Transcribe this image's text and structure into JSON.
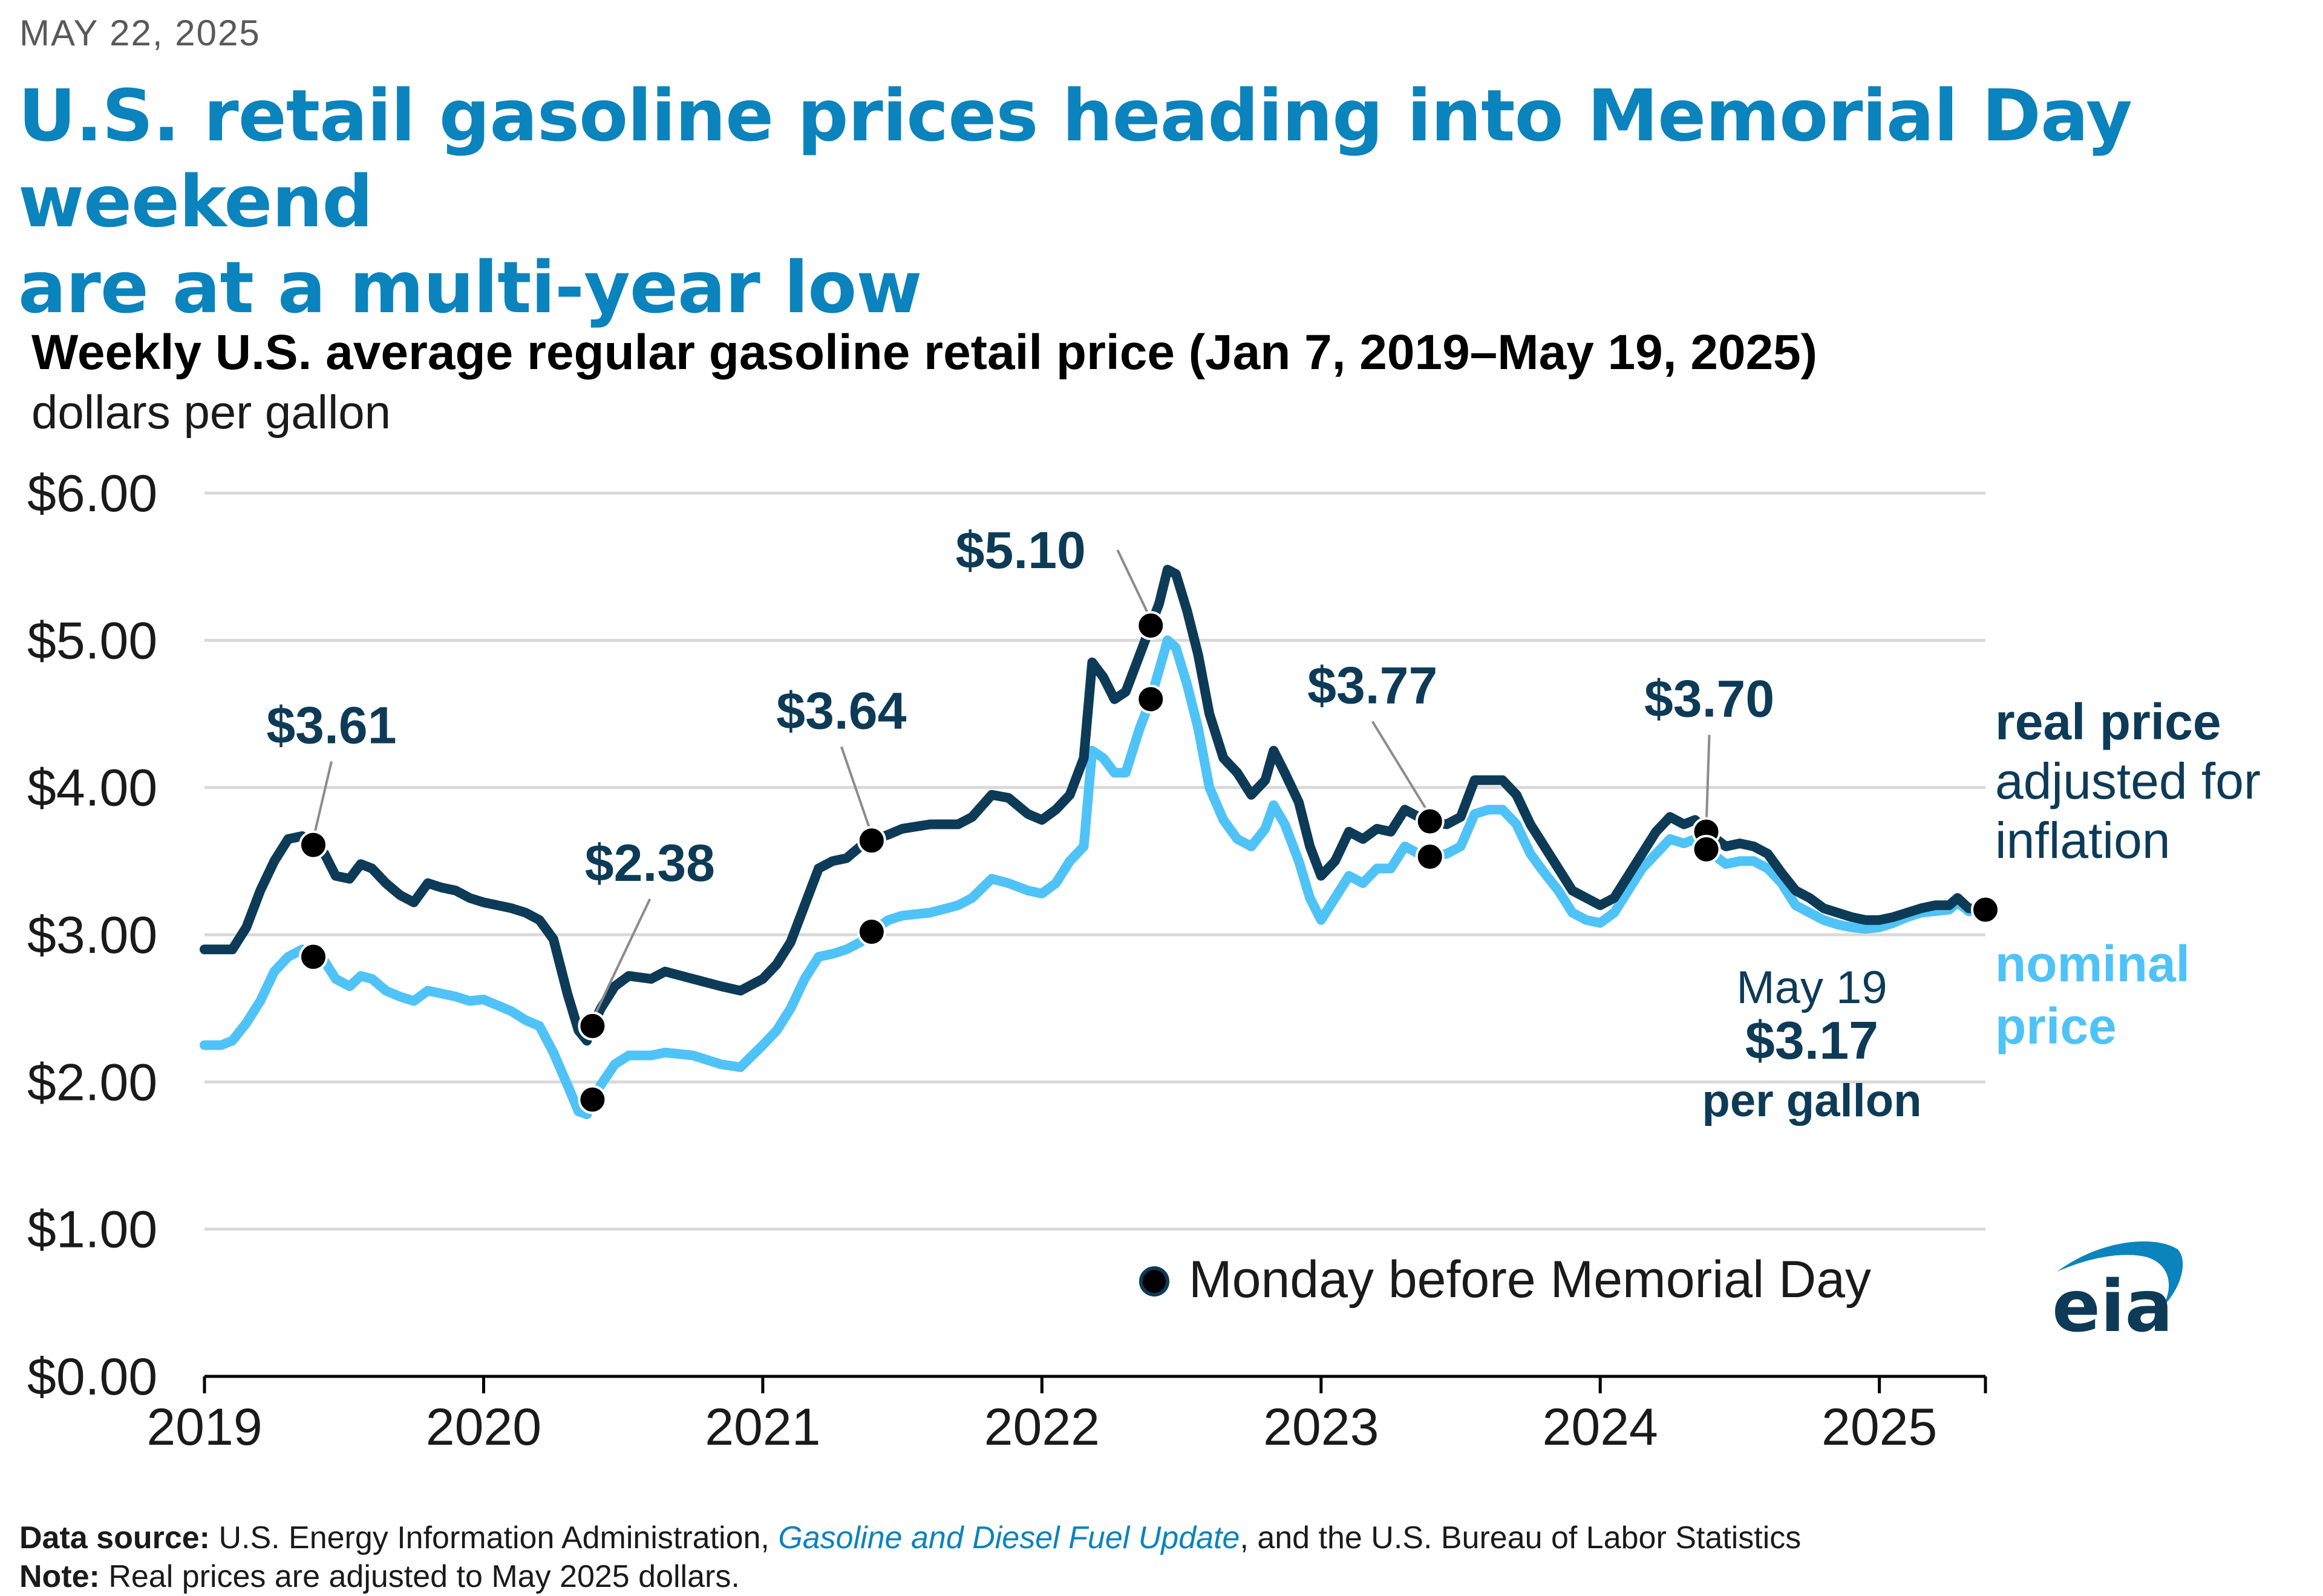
{
  "date": "MAY 22, 2025",
  "headline": {
    "line1": "U.S. retail gasoline prices heading into Memorial Day weekend",
    "line2": "are at a multi-year low"
  },
  "footer": {
    "source_label": "Data source:",
    "source_text1": " U.S. Energy Information Administration, ",
    "source_link": "Gasoline and Diesel Fuel Update",
    "source_text2": ", and the U.S. Bureau of Labor Statistics",
    "note_label": "Note:",
    "note_text": " Real prices are adjusted to May 2025 dollars."
  },
  "logo": {
    "text": "eia"
  },
  "colors": {
    "real": "#0d3b57",
    "nominal": "#4fc3f7",
    "marker": "#000000",
    "grid": "#d9d9d9",
    "accent": "#0b83bd"
  },
  "chart_data": {
    "type": "line",
    "title": "Weekly U.S. average regular gasoline retail price (Jan 7, 2019–May 19, 2025)",
    "ylabel": "dollars per gallon",
    "ylim": [
      0,
      6
    ],
    "xlim": [
      2019.0,
      2025.38
    ],
    "y_ticks": [
      0,
      1,
      2,
      3,
      4,
      5,
      6
    ],
    "y_tick_labels": [
      "$0.00",
      "$1.00",
      "$2.00",
      "$3.00",
      "$4.00",
      "$5.00",
      "$6.00"
    ],
    "x_ticks": [
      2019,
      2020,
      2021,
      2022,
      2023,
      2024,
      2025
    ],
    "x_tick_labels": [
      "2019",
      "2020",
      "2021",
      "2022",
      "2023",
      "2024",
      "2025"
    ],
    "grid": true,
    "series": [
      {
        "name": "real price",
        "label_bold": "real price",
        "label_rest": [
          "adjusted for",
          "inflation"
        ],
        "color": "#0d3b57",
        "points": [
          [
            2019.0,
            2.9
          ],
          [
            2019.06,
            2.9
          ],
          [
            2019.1,
            2.9
          ],
          [
            2019.15,
            3.05
          ],
          [
            2019.2,
            3.3
          ],
          [
            2019.25,
            3.5
          ],
          [
            2019.3,
            3.65
          ],
          [
            2019.35,
            3.67
          ],
          [
            2019.39,
            3.61
          ],
          [
            2019.43,
            3.55
          ],
          [
            2019.47,
            3.4
          ],
          [
            2019.52,
            3.38
          ],
          [
            2019.56,
            3.48
          ],
          [
            2019.6,
            3.45
          ],
          [
            2019.65,
            3.35
          ],
          [
            2019.7,
            3.27
          ],
          [
            2019.75,
            3.22
          ],
          [
            2019.8,
            3.35
          ],
          [
            2019.85,
            3.32
          ],
          [
            2019.9,
            3.3
          ],
          [
            2019.95,
            3.25
          ],
          [
            2020.0,
            3.22
          ],
          [
            2020.05,
            3.2
          ],
          [
            2020.1,
            3.18
          ],
          [
            2020.15,
            3.15
          ],
          [
            2020.2,
            3.1
          ],
          [
            2020.25,
            2.97
          ],
          [
            2020.3,
            2.6
          ],
          [
            2020.34,
            2.35
          ],
          [
            2020.37,
            2.28
          ],
          [
            2020.39,
            2.38
          ],
          [
            2020.42,
            2.5
          ],
          [
            2020.47,
            2.65
          ],
          [
            2020.52,
            2.72
          ],
          [
            2020.6,
            2.7
          ],
          [
            2020.65,
            2.75
          ],
          [
            2020.75,
            2.7
          ],
          [
            2020.85,
            2.65
          ],
          [
            2020.92,
            2.62
          ],
          [
            2021.0,
            2.7
          ],
          [
            2021.05,
            2.8
          ],
          [
            2021.1,
            2.95
          ],
          [
            2021.15,
            3.2
          ],
          [
            2021.2,
            3.45
          ],
          [
            2021.25,
            3.5
          ],
          [
            2021.3,
            3.52
          ],
          [
            2021.35,
            3.6
          ],
          [
            2021.39,
            3.64
          ],
          [
            2021.45,
            3.68
          ],
          [
            2021.5,
            3.72
          ],
          [
            2021.6,
            3.75
          ],
          [
            2021.7,
            3.75
          ],
          [
            2021.75,
            3.8
          ],
          [
            2021.82,
            3.95
          ],
          [
            2021.88,
            3.93
          ],
          [
            2021.95,
            3.82
          ],
          [
            2022.0,
            3.78
          ],
          [
            2022.05,
            3.85
          ],
          [
            2022.1,
            3.95
          ],
          [
            2022.15,
            4.2
          ],
          [
            2022.18,
            4.85
          ],
          [
            2022.22,
            4.75
          ],
          [
            2022.26,
            4.6
          ],
          [
            2022.3,
            4.65
          ],
          [
            2022.35,
            4.9
          ],
          [
            2022.39,
            5.1
          ],
          [
            2022.42,
            5.25
          ],
          [
            2022.45,
            5.48
          ],
          [
            2022.48,
            5.45
          ],
          [
            2022.52,
            5.2
          ],
          [
            2022.56,
            4.9
          ],
          [
            2022.6,
            4.5
          ],
          [
            2022.65,
            4.2
          ],
          [
            2022.7,
            4.1
          ],
          [
            2022.75,
            3.95
          ],
          [
            2022.8,
            4.05
          ],
          [
            2022.83,
            4.25
          ],
          [
            2022.87,
            4.1
          ],
          [
            2022.92,
            3.9
          ],
          [
            2022.96,
            3.6
          ],
          [
            2023.0,
            3.4
          ],
          [
            2023.05,
            3.5
          ],
          [
            2023.1,
            3.7
          ],
          [
            2023.15,
            3.65
          ],
          [
            2023.2,
            3.72
          ],
          [
            2023.25,
            3.7
          ],
          [
            2023.3,
            3.85
          ],
          [
            2023.35,
            3.8
          ],
          [
            2023.39,
            3.77
          ],
          [
            2023.45,
            3.75
          ],
          [
            2023.5,
            3.8
          ],
          [
            2023.55,
            4.05
          ],
          [
            2023.6,
            4.05
          ],
          [
            2023.65,
            4.05
          ],
          [
            2023.7,
            3.95
          ],
          [
            2023.75,
            3.75
          ],
          [
            2023.8,
            3.6
          ],
          [
            2023.85,
            3.45
          ],
          [
            2023.9,
            3.3
          ],
          [
            2023.95,
            3.25
          ],
          [
            2024.0,
            3.2
          ],
          [
            2024.05,
            3.25
          ],
          [
            2024.1,
            3.4
          ],
          [
            2024.15,
            3.55
          ],
          [
            2024.2,
            3.7
          ],
          [
            2024.25,
            3.8
          ],
          [
            2024.3,
            3.75
          ],
          [
            2024.34,
            3.78
          ],
          [
            2024.38,
            3.7
          ],
          [
            2024.45,
            3.6
          ],
          [
            2024.5,
            3.62
          ],
          [
            2024.55,
            3.6
          ],
          [
            2024.6,
            3.55
          ],
          [
            2024.65,
            3.42
          ],
          [
            2024.7,
            3.3
          ],
          [
            2024.75,
            3.25
          ],
          [
            2024.8,
            3.18
          ],
          [
            2024.85,
            3.15
          ],
          [
            2024.9,
            3.12
          ],
          [
            2024.95,
            3.1
          ],
          [
            2025.0,
            3.1
          ],
          [
            2025.05,
            3.12
          ],
          [
            2025.1,
            3.15
          ],
          [
            2025.15,
            3.18
          ],
          [
            2025.2,
            3.2
          ],
          [
            2025.25,
            3.2
          ],
          [
            2025.28,
            3.25
          ],
          [
            2025.32,
            3.18
          ],
          [
            2025.38,
            3.17
          ]
        ],
        "memorial_day": [
          [
            2019.39,
            3.61
          ],
          [
            2020.39,
            2.38
          ],
          [
            2021.39,
            3.64
          ],
          [
            2022.39,
            5.1
          ],
          [
            2023.39,
            3.77
          ],
          [
            2024.38,
            3.7
          ],
          [
            2025.38,
            3.17
          ]
        ]
      },
      {
        "name": "nominal price",
        "label_lines": [
          "nominal",
          "price"
        ],
        "color": "#4fc3f7",
        "points": [
          [
            2019.0,
            2.25
          ],
          [
            2019.06,
            2.25
          ],
          [
            2019.1,
            2.28
          ],
          [
            2019.15,
            2.4
          ],
          [
            2019.2,
            2.55
          ],
          [
            2019.25,
            2.75
          ],
          [
            2019.3,
            2.85
          ],
          [
            2019.35,
            2.9
          ],
          [
            2019.39,
            2.85
          ],
          [
            2019.43,
            2.82
          ],
          [
            2019.47,
            2.7
          ],
          [
            2019.52,
            2.65
          ],
          [
            2019.56,
            2.72
          ],
          [
            2019.6,
            2.7
          ],
          [
            2019.65,
            2.62
          ],
          [
            2019.7,
            2.58
          ],
          [
            2019.75,
            2.55
          ],
          [
            2019.8,
            2.62
          ],
          [
            2019.85,
            2.6
          ],
          [
            2019.9,
            2.58
          ],
          [
            2019.95,
            2.55
          ],
          [
            2020.0,
            2.56
          ],
          [
            2020.05,
            2.52
          ],
          [
            2020.1,
            2.48
          ],
          [
            2020.15,
            2.42
          ],
          [
            2020.2,
            2.38
          ],
          [
            2020.25,
            2.2
          ],
          [
            2020.3,
            1.98
          ],
          [
            2020.34,
            1.8
          ],
          [
            2020.37,
            1.78
          ],
          [
            2020.39,
            1.88
          ],
          [
            2020.42,
            1.98
          ],
          [
            2020.47,
            2.12
          ],
          [
            2020.52,
            2.18
          ],
          [
            2020.6,
            2.18
          ],
          [
            2020.65,
            2.2
          ],
          [
            2020.75,
            2.18
          ],
          [
            2020.85,
            2.12
          ],
          [
            2020.92,
            2.1
          ],
          [
            2021.0,
            2.25
          ],
          [
            2021.05,
            2.35
          ],
          [
            2021.1,
            2.5
          ],
          [
            2021.15,
            2.7
          ],
          [
            2021.2,
            2.85
          ],
          [
            2021.25,
            2.87
          ],
          [
            2021.3,
            2.9
          ],
          [
            2021.35,
            2.95
          ],
          [
            2021.39,
            3.02
          ],
          [
            2021.45,
            3.1
          ],
          [
            2021.5,
            3.13
          ],
          [
            2021.6,
            3.15
          ],
          [
            2021.7,
            3.2
          ],
          [
            2021.75,
            3.25
          ],
          [
            2021.82,
            3.38
          ],
          [
            2021.88,
            3.35
          ],
          [
            2021.95,
            3.3
          ],
          [
            2022.0,
            3.28
          ],
          [
            2022.05,
            3.35
          ],
          [
            2022.1,
            3.5
          ],
          [
            2022.15,
            3.6
          ],
          [
            2022.18,
            4.25
          ],
          [
            2022.22,
            4.2
          ],
          [
            2022.26,
            4.1
          ],
          [
            2022.3,
            4.1
          ],
          [
            2022.35,
            4.4
          ],
          [
            2022.39,
            4.6
          ],
          [
            2022.42,
            4.8
          ],
          [
            2022.45,
            5.0
          ],
          [
            2022.48,
            4.95
          ],
          [
            2022.52,
            4.7
          ],
          [
            2022.56,
            4.4
          ],
          [
            2022.6,
            4.0
          ],
          [
            2022.65,
            3.78
          ],
          [
            2022.7,
            3.65
          ],
          [
            2022.75,
            3.6
          ],
          [
            2022.8,
            3.72
          ],
          [
            2022.83,
            3.88
          ],
          [
            2022.87,
            3.75
          ],
          [
            2022.92,
            3.5
          ],
          [
            2022.96,
            3.25
          ],
          [
            2023.0,
            3.1
          ],
          [
            2023.05,
            3.25
          ],
          [
            2023.1,
            3.4
          ],
          [
            2023.15,
            3.35
          ],
          [
            2023.2,
            3.45
          ],
          [
            2023.25,
            3.45
          ],
          [
            2023.3,
            3.6
          ],
          [
            2023.35,
            3.55
          ],
          [
            2023.39,
            3.53
          ],
          [
            2023.45,
            3.55
          ],
          [
            2023.5,
            3.6
          ],
          [
            2023.55,
            3.82
          ],
          [
            2023.6,
            3.85
          ],
          [
            2023.65,
            3.85
          ],
          [
            2023.7,
            3.75
          ],
          [
            2023.75,
            3.55
          ],
          [
            2023.8,
            3.42
          ],
          [
            2023.85,
            3.3
          ],
          [
            2023.9,
            3.15
          ],
          [
            2023.95,
            3.1
          ],
          [
            2024.0,
            3.08
          ],
          [
            2024.05,
            3.15
          ],
          [
            2024.1,
            3.3
          ],
          [
            2024.15,
            3.45
          ],
          [
            2024.2,
            3.55
          ],
          [
            2024.25,
            3.65
          ],
          [
            2024.3,
            3.62
          ],
          [
            2024.34,
            3.65
          ],
          [
            2024.38,
            3.58
          ],
          [
            2024.45,
            3.48
          ],
          [
            2024.5,
            3.5
          ],
          [
            2024.55,
            3.5
          ],
          [
            2024.6,
            3.45
          ],
          [
            2024.65,
            3.35
          ],
          [
            2024.7,
            3.2
          ],
          [
            2024.75,
            3.15
          ],
          [
            2024.8,
            3.1
          ],
          [
            2024.85,
            3.07
          ],
          [
            2024.9,
            3.05
          ],
          [
            2024.95,
            3.04
          ],
          [
            2025.0,
            3.05
          ],
          [
            2025.05,
            3.08
          ],
          [
            2025.1,
            3.12
          ],
          [
            2025.15,
            3.15
          ],
          [
            2025.2,
            3.16
          ],
          [
            2025.25,
            3.17
          ],
          [
            2025.28,
            3.22
          ],
          [
            2025.32,
            3.16
          ],
          [
            2025.38,
            3.17
          ]
        ],
        "memorial_day": [
          [
            2019.39,
            2.85
          ],
          [
            2020.39,
            1.88
          ],
          [
            2021.39,
            3.02
          ],
          [
            2022.39,
            4.6
          ],
          [
            2023.39,
            3.53
          ],
          [
            2024.38,
            3.58
          ]
        ]
      }
    ],
    "annotations": [
      {
        "text": "$3.61",
        "x": 2019.39,
        "y": 3.61
      },
      {
        "text": "$2.38",
        "x": 2020.39,
        "y": 2.38
      },
      {
        "text": "$3.64",
        "x": 2021.39,
        "y": 3.64
      },
      {
        "text": "$5.10",
        "x": 2022.39,
        "y": 5.1
      },
      {
        "text": "$3.77",
        "x": 2023.39,
        "y": 3.77
      },
      {
        "text": "$3.70",
        "x": 2024.38,
        "y": 3.7
      }
    ],
    "latest": {
      "date_label": "May 19",
      "value_label": "$3.17",
      "unit_label": "per gallon"
    },
    "legend": {
      "marker_label": "Monday before Memorial Day",
      "placement": "bottom-right"
    }
  }
}
